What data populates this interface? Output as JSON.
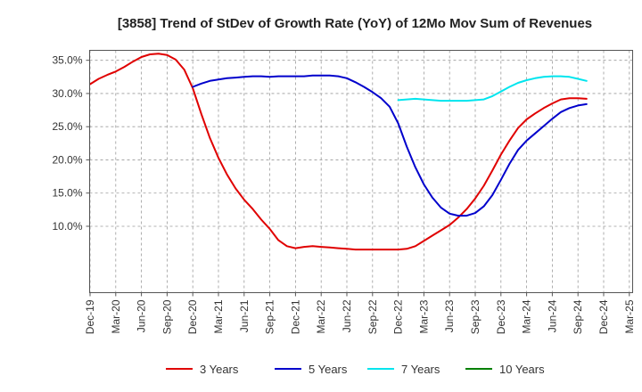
{
  "chart_data": {
    "type": "line",
    "title": "[3858]  Trend of StDev of Growth Rate (YoY) of 12Mo Mov Sum of Revenues",
    "xlabel": "",
    "ylabel": "",
    "ylim": [
      0.0,
      36.5
    ],
    "y_ticks": [
      10.0,
      15.0,
      20.0,
      25.0,
      30.0,
      35.0
    ],
    "y_tick_labels": [
      "10.0%",
      "15.0%",
      "20.0%",
      "25.0%",
      "30.0%",
      "35.0%"
    ],
    "x_ticks": [
      "Dec-19",
      "Mar-20",
      "Jun-20",
      "Sep-20",
      "Dec-20",
      "Mar-21",
      "Jun-21",
      "Sep-21",
      "Dec-21",
      "Mar-22",
      "Jun-22",
      "Sep-22",
      "Dec-22",
      "Mar-23",
      "Jun-23",
      "Sep-23",
      "Dec-23",
      "Mar-24",
      "Jun-24",
      "Sep-24",
      "Dec-24",
      "Mar-25"
    ],
    "legend": [
      {
        "name": "3 Years",
        "color": "#e00000"
      },
      {
        "name": "5 Years",
        "color": "#0000cc"
      },
      {
        "name": "7 Years",
        "color": "#00e5ee"
      },
      {
        "name": "10 Years",
        "color": "#008000"
      }
    ],
    "series": [
      {
        "name": "3 Years",
        "color": "#e00000",
        "values": [
          [
            0,
            31.4
          ],
          [
            1,
            32.2
          ],
          [
            2,
            32.8
          ],
          [
            3,
            33.3
          ],
          [
            4,
            34.0
          ],
          [
            5,
            34.8
          ],
          [
            6,
            35.5
          ],
          [
            7,
            35.9
          ],
          [
            8,
            36.0
          ],
          [
            9,
            35.8
          ],
          [
            10,
            35.1
          ],
          [
            11,
            33.6
          ],
          [
            12,
            30.8
          ],
          [
            13,
            26.9
          ],
          [
            14,
            23.3
          ],
          [
            15,
            20.3
          ],
          [
            16,
            17.8
          ],
          [
            17,
            15.7
          ],
          [
            18,
            14.0
          ],
          [
            19,
            12.6
          ],
          [
            20,
            11.0
          ],
          [
            21,
            9.6
          ],
          [
            22,
            7.9
          ],
          [
            23,
            7.0
          ],
          [
            24,
            6.7
          ],
          [
            25,
            6.9
          ],
          [
            26,
            7.0
          ],
          [
            27,
            6.9
          ],
          [
            28,
            6.8
          ],
          [
            29,
            6.7
          ],
          [
            30,
            6.6
          ],
          [
            31,
            6.5
          ],
          [
            32,
            6.5
          ],
          [
            33,
            6.5
          ],
          [
            34,
            6.5
          ],
          [
            35,
            6.5
          ],
          [
            36,
            6.5
          ],
          [
            37,
            6.6
          ],
          [
            38,
            7.0
          ],
          [
            39,
            7.8
          ],
          [
            40,
            8.6
          ],
          [
            41,
            9.4
          ],
          [
            42,
            10.2
          ],
          [
            43,
            11.3
          ],
          [
            44,
            12.6
          ],
          [
            45,
            14.2
          ],
          [
            46,
            16.1
          ],
          [
            47,
            18.4
          ],
          [
            48,
            20.8
          ],
          [
            49,
            22.9
          ],
          [
            50,
            24.8
          ],
          [
            51,
            26.1
          ],
          [
            52,
            27.0
          ],
          [
            53,
            27.8
          ],
          [
            54,
            28.5
          ],
          [
            55,
            29.1
          ],
          [
            56,
            29.3
          ],
          [
            57,
            29.3
          ],
          [
            58,
            29.2
          ]
        ]
      },
      {
        "name": "5 Years",
        "color": "#0000cc",
        "values": [
          [
            12,
            31.0
          ],
          [
            13,
            31.5
          ],
          [
            14,
            31.9
          ],
          [
            15,
            32.1
          ],
          [
            16,
            32.3
          ],
          [
            17,
            32.4
          ],
          [
            18,
            32.5
          ],
          [
            19,
            32.6
          ],
          [
            20,
            32.6
          ],
          [
            21,
            32.5
          ],
          [
            22,
            32.6
          ],
          [
            23,
            32.6
          ],
          [
            24,
            32.6
          ],
          [
            25,
            32.6
          ],
          [
            26,
            32.7
          ],
          [
            27,
            32.7
          ],
          [
            28,
            32.7
          ],
          [
            29,
            32.6
          ],
          [
            30,
            32.3
          ],
          [
            31,
            31.7
          ],
          [
            32,
            31.0
          ],
          [
            33,
            30.2
          ],
          [
            34,
            29.3
          ],
          [
            35,
            28.0
          ],
          [
            36,
            25.5
          ],
          [
            37,
            22.0
          ],
          [
            38,
            18.9
          ],
          [
            39,
            16.3
          ],
          [
            40,
            14.3
          ],
          [
            41,
            12.8
          ],
          [
            42,
            11.9
          ],
          [
            43,
            11.6
          ],
          [
            44,
            11.6
          ],
          [
            45,
            12.0
          ],
          [
            46,
            13.0
          ],
          [
            47,
            14.7
          ],
          [
            48,
            17.0
          ],
          [
            49,
            19.4
          ],
          [
            50,
            21.5
          ],
          [
            51,
            22.9
          ],
          [
            52,
            24.0
          ],
          [
            53,
            25.1
          ],
          [
            54,
            26.2
          ],
          [
            55,
            27.2
          ],
          [
            56,
            27.8
          ],
          [
            57,
            28.2
          ],
          [
            58,
            28.4
          ]
        ]
      },
      {
        "name": "7 Years",
        "color": "#00e5ee",
        "values": [
          [
            36,
            29.0
          ],
          [
            37,
            29.1
          ],
          [
            38,
            29.2
          ],
          [
            39,
            29.1
          ],
          [
            40,
            29.0
          ],
          [
            41,
            28.9
          ],
          [
            42,
            28.9
          ],
          [
            43,
            28.9
          ],
          [
            44,
            28.9
          ],
          [
            45,
            29.0
          ],
          [
            46,
            29.1
          ],
          [
            47,
            29.6
          ],
          [
            48,
            30.3
          ],
          [
            49,
            31.0
          ],
          [
            50,
            31.6
          ],
          [
            51,
            32.0
          ],
          [
            52,
            32.3
          ],
          [
            53,
            32.5
          ],
          [
            54,
            32.6
          ],
          [
            55,
            32.6
          ],
          [
            56,
            32.5
          ],
          [
            57,
            32.2
          ],
          [
            58,
            31.9
          ]
        ]
      },
      {
        "name": "10 Years",
        "color": "#008000",
        "values": []
      }
    ]
  }
}
